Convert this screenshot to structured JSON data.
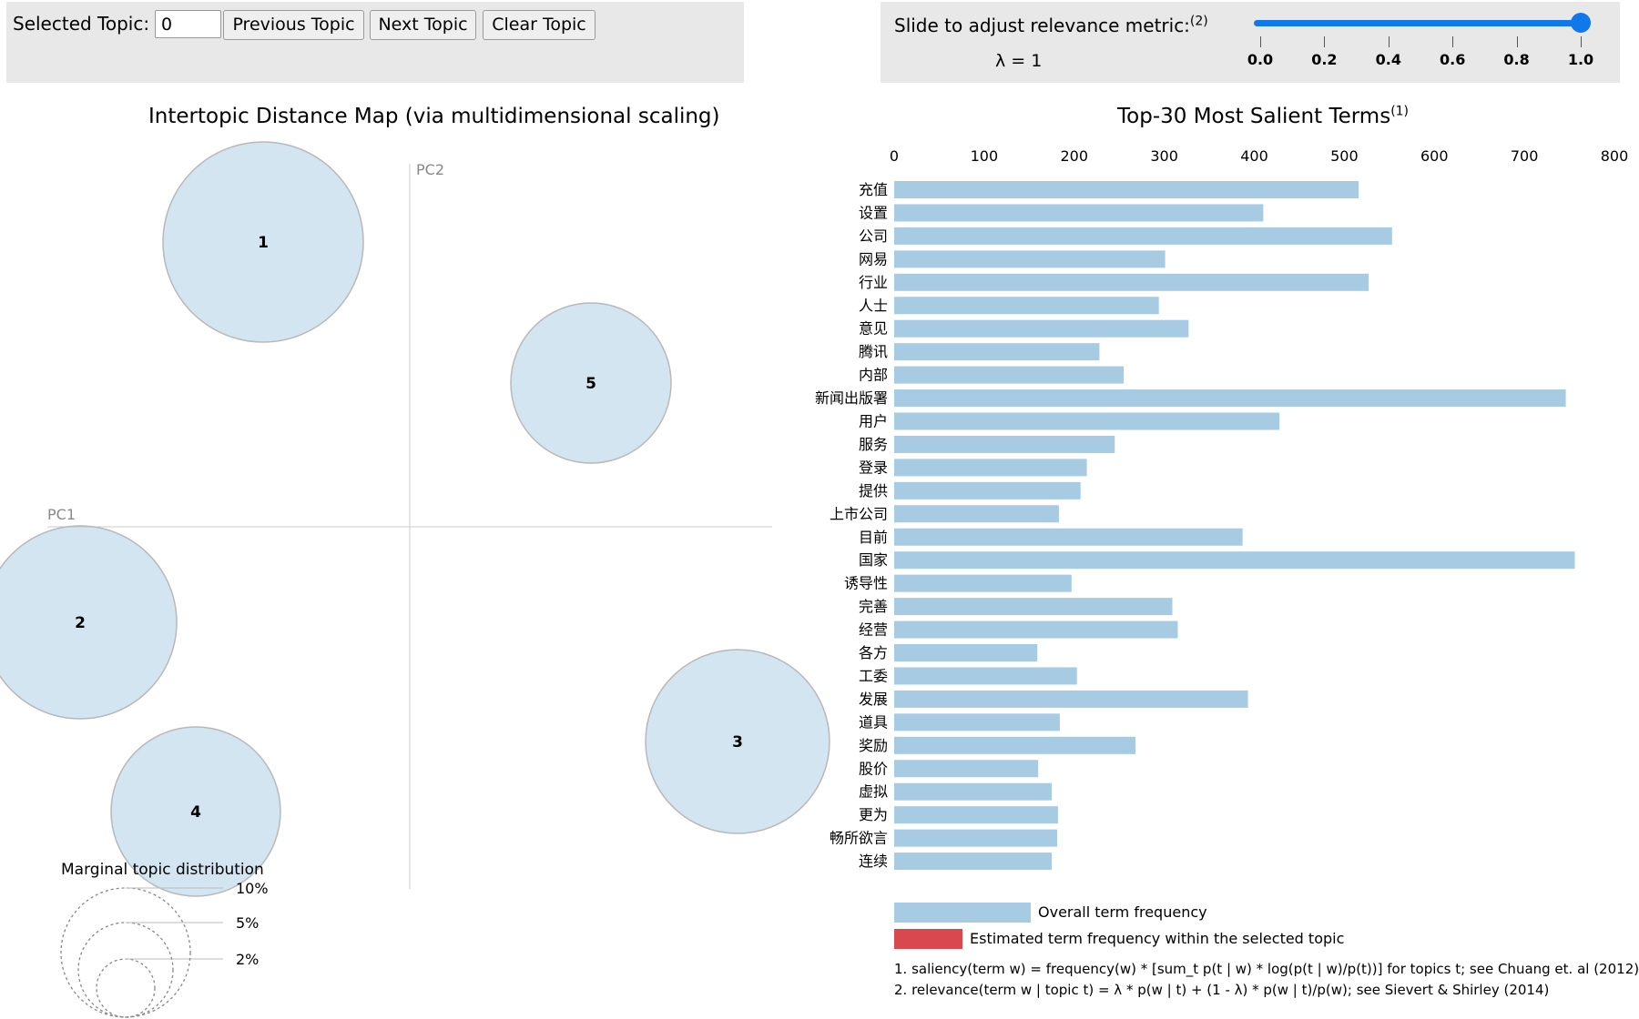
{
  "controls": {
    "selected_topic_label": "Selected Topic:",
    "selected_topic_value": "0",
    "prev_label": "Previous Topic",
    "next_label": "Next Topic",
    "clear_label": "Clear Topic"
  },
  "slider": {
    "label": "Slide to adjust relevance metric:",
    "label_sup": "(2)",
    "lambda_text": "λ = 1",
    "value": 1.0,
    "ticks": [
      "0.0",
      "0.2",
      "0.4",
      "0.6",
      "0.8",
      "1.0"
    ]
  },
  "map": {
    "title": "Intertopic Distance Map (via multidimensional scaling)",
    "pc1_label": "PC1",
    "pc2_label": "PC2",
    "marginal_title": "Marginal topic distribution",
    "marginal_labels": [
      "2%",
      "5%",
      "10%"
    ],
    "topics": [
      {
        "id": "1"
      },
      {
        "id": "2"
      },
      {
        "id": "3"
      },
      {
        "id": "4"
      },
      {
        "id": "5"
      }
    ]
  },
  "chart_data": {
    "type": "bar",
    "title": "Top-30 Most Salient Terms",
    "title_sup": "(1)",
    "xlim": [
      0,
      800
    ],
    "x_ticks": [
      "0",
      "100",
      "200",
      "300",
      "400",
      "500",
      "600",
      "700",
      "800"
    ],
    "categories": [
      "充值",
      "设置",
      "公司",
      "网易",
      "行业",
      "人士",
      "意见",
      "腾讯",
      "内部",
      "新闻出版署",
      "用户",
      "服务",
      "登录",
      "提供",
      "上市公司",
      "目前",
      "国家",
      "诱导性",
      "完善",
      "经营",
      "各方",
      "工委",
      "发展",
      "道具",
      "奖励",
      "股价",
      "虚拟",
      "更为",
      "畅所欲言",
      "连续"
    ],
    "series": [
      {
        "name": "Overall term frequency",
        "values": [
          516,
          410,
          553,
          301,
          527,
          294,
          327,
          228,
          255,
          746,
          428,
          245,
          214,
          207,
          183,
          387,
          756,
          197,
          309,
          315,
          159,
          203,
          393,
          184,
          268,
          160,
          175,
          182,
          181,
          175
        ]
      }
    ],
    "colors": {
      "overall": "#a6cbe3",
      "topic": "#d9484e"
    }
  },
  "legend": {
    "overall": "Overall term frequency",
    "topic": "Estimated term frequency within the selected topic"
  },
  "footnotes": {
    "saliency": "1. saliency(term w) = frequency(w) * [sum_t p(t | w) * log(p(t | w)/p(t))] for topics t; see Chuang et. al (2012)",
    "relevance": "2. relevance(term w | topic t) = λ * p(w | t) + (1 - λ) * p(w | t)/p(w); see Sievert & Shirley (2014)"
  }
}
